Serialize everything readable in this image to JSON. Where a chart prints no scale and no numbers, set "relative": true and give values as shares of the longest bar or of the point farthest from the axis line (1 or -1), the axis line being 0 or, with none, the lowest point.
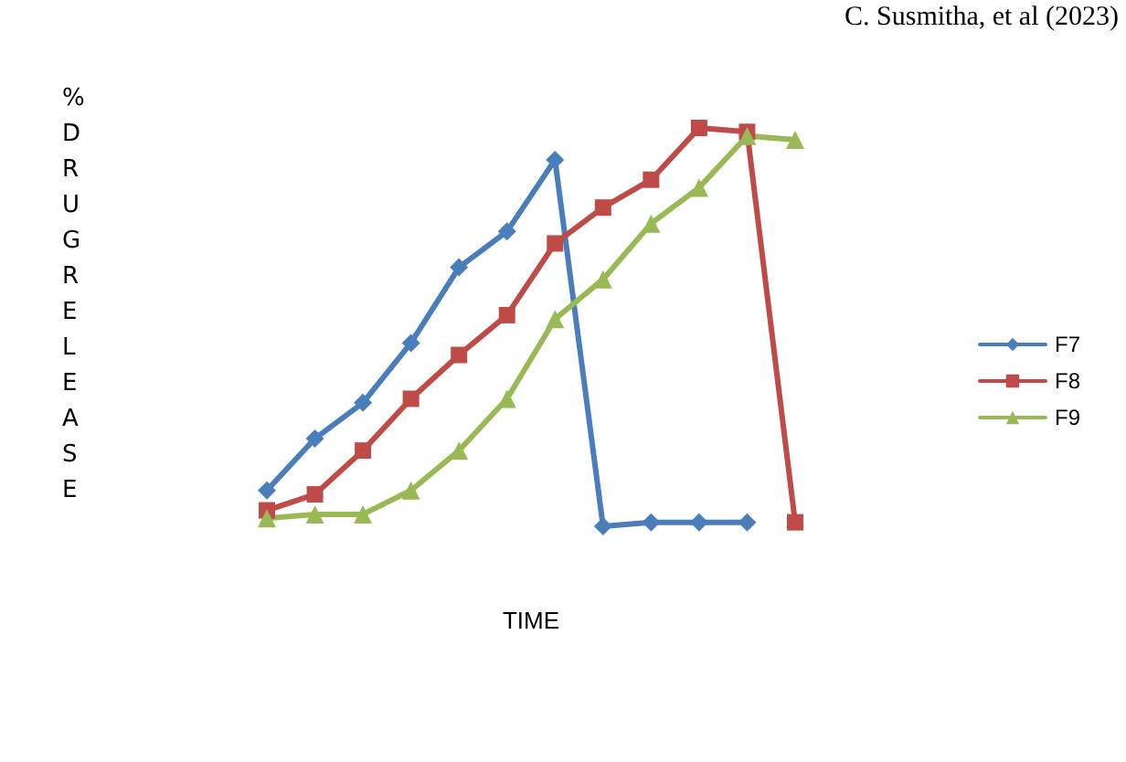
{
  "chart_data": {
    "type": "line",
    "relative": true,
    "xlabel": "TIME",
    "ylabel": "% DRUG RELEASE",
    "annotations": [
      "C. Susmitha, et al (2023)"
    ],
    "categories": [
      null,
      null,
      null,
      null,
      null,
      null,
      null,
      null,
      null,
      null,
      null,
      null
    ],
    "legend": "right",
    "grid": false,
    "line_style": "solid",
    "series": [
      {
        "name": "F7",
        "color": "#4a7ebb",
        "marker": "diamond",
        "values": [
          0.09,
          0.22,
          0.31,
          0.46,
          0.65,
          0.74,
          0.92,
          0,
          0.01,
          0.01,
          0.01,
          null
        ]
      },
      {
        "name": "F8",
        "color": "#be4b48",
        "marker": "square",
        "values": [
          0.04,
          0.08,
          0.19,
          0.32,
          0.43,
          0.53,
          0.71,
          0.8,
          0.87,
          1,
          0.99,
          0.01
        ]
      },
      {
        "name": "F9",
        "color": "#98b954",
        "marker": "triangle",
        "values": [
          0.02,
          0.03,
          0.03,
          0.09,
          0.19,
          0.32,
          0.52,
          0.62,
          0.76,
          0.85,
          0.98,
          0.97
        ]
      }
    ]
  }
}
